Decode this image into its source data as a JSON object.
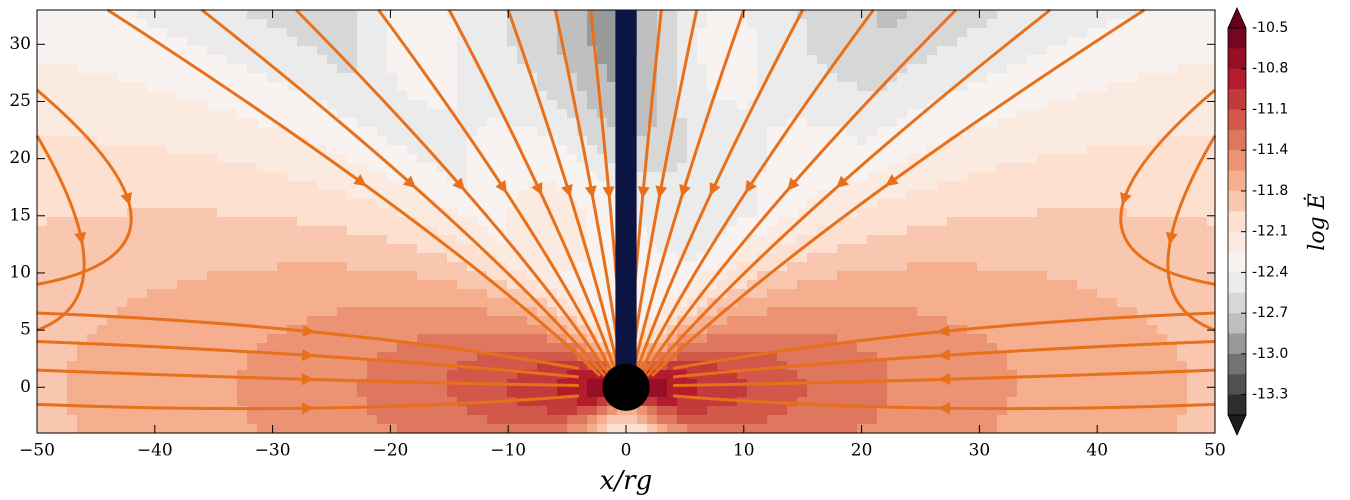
{
  "chart_data": {
    "type": "contour",
    "xlabel": "x/rg",
    "xlim": [
      -50,
      50
    ],
    "ylim": [
      -4,
      33
    ],
    "xticks": [
      {
        "value": -50,
        "label": "−50"
      },
      {
        "value": -40,
        "label": "−40"
      },
      {
        "value": -30,
        "label": "−30"
      },
      {
        "value": -20,
        "label": "−20"
      },
      {
        "value": -10,
        "label": "−10"
      },
      0,
      10,
      20,
      30,
      40,
      50
    ],
    "yticks": [
      0,
      5,
      10,
      15,
      20,
      25,
      30
    ],
    "colorbar": {
      "label": "log Ė",
      "clim": [
        -13.46875,
        -10.5
      ],
      "extend": "both",
      "ticks": [
        {
          "value": -10.5,
          "label": "-10.5"
        },
        {
          "value": -10.8125,
          "label": "-10.8"
        },
        {
          "value": -11.125,
          "label": "-11.1"
        },
        {
          "value": -11.4375,
          "label": "-11.4"
        },
        {
          "value": -11.75,
          "label": "-11.8"
        },
        {
          "value": -12.0625,
          "label": "-12.1"
        },
        {
          "value": -12.375,
          "label": "-12.4"
        },
        {
          "value": -12.6875,
          "label": "-12.7"
        },
        {
          "value": -13.0,
          "label": "-13.0"
        },
        {
          "value": -13.3125,
          "label": "-13.3"
        }
      ],
      "colormap": [
        "#1c1c1c",
        "#6e6e6e",
        "#c8c8c8",
        "#f7f7f7",
        "#fde0cf",
        "#f4a582",
        "#d6604d",
        "#b2182b",
        "#67001f"
      ]
    },
    "stream_color": "#e8701a",
    "jet_color": "#0b1442",
    "hole_color": "#000000"
  }
}
